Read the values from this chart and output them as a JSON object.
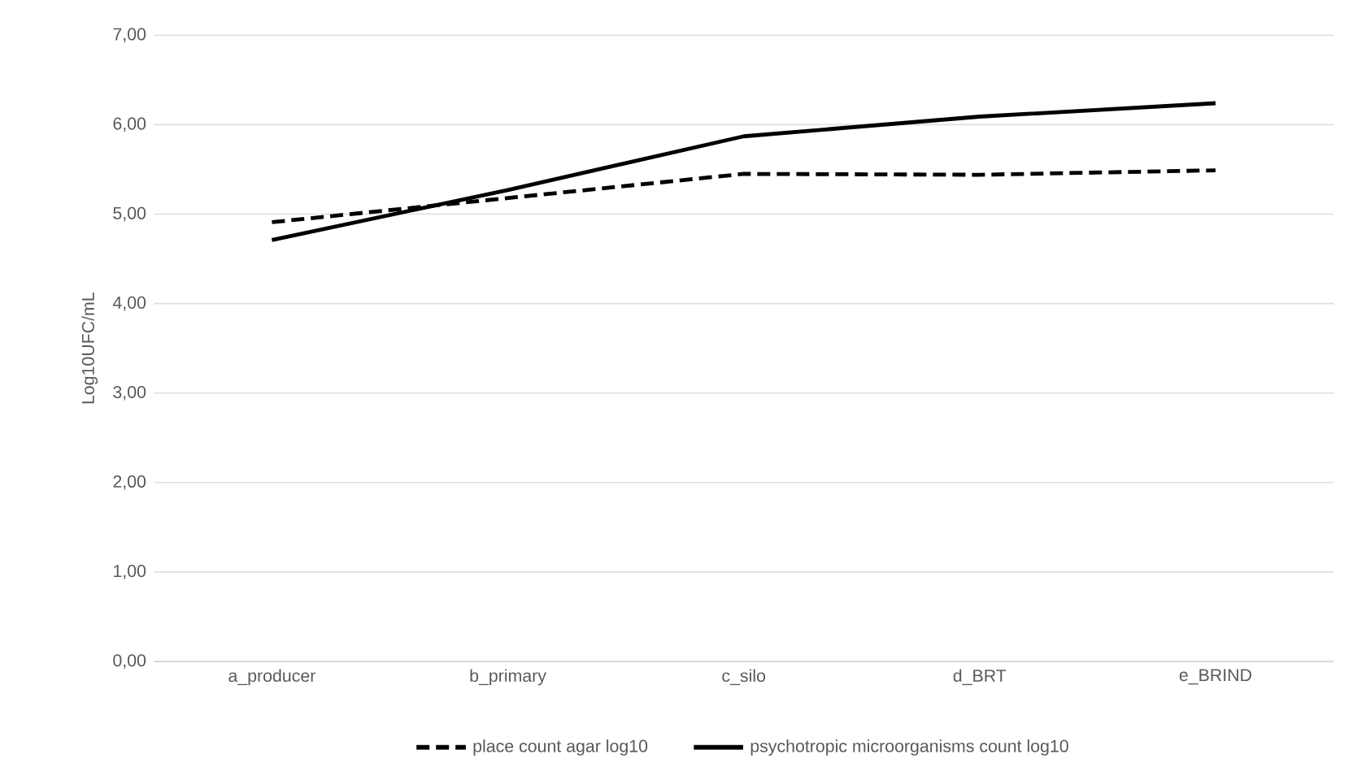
{
  "chart_data": {
    "type": "line",
    "ylabel": "Log10UFC/mL",
    "categories": [
      "a_producer",
      "b_primary",
      "c_silo",
      "d_BRT",
      "e_BRIND"
    ],
    "series": [
      {
        "name": "place count agar log10",
        "color": "#000000",
        "line_style": "dashed",
        "values": [
          4.91,
          5.18,
          5.45,
          5.44,
          5.49
        ]
      },
      {
        "name": "psychotropic microorganisms count log10",
        "color": "#000000",
        "line_style": "solid",
        "values": [
          4.71,
          5.27,
          5.87,
          6.09,
          6.24
        ]
      }
    ],
    "ylim": [
      0,
      7
    ],
    "yticks": [
      {
        "value": 0,
        "label": "0,00"
      },
      {
        "value": 1,
        "label": "1,00"
      },
      {
        "value": 2,
        "label": "2,00"
      },
      {
        "value": 3,
        "label": "3,00"
      },
      {
        "value": 4,
        "label": "4,00"
      },
      {
        "value": 5,
        "label": "5,00"
      },
      {
        "value": 6,
        "label": "6,00"
      },
      {
        "value": 7,
        "label": "7,00"
      }
    ],
    "grid": "y",
    "legend": "bottom",
    "marker": "none"
  }
}
